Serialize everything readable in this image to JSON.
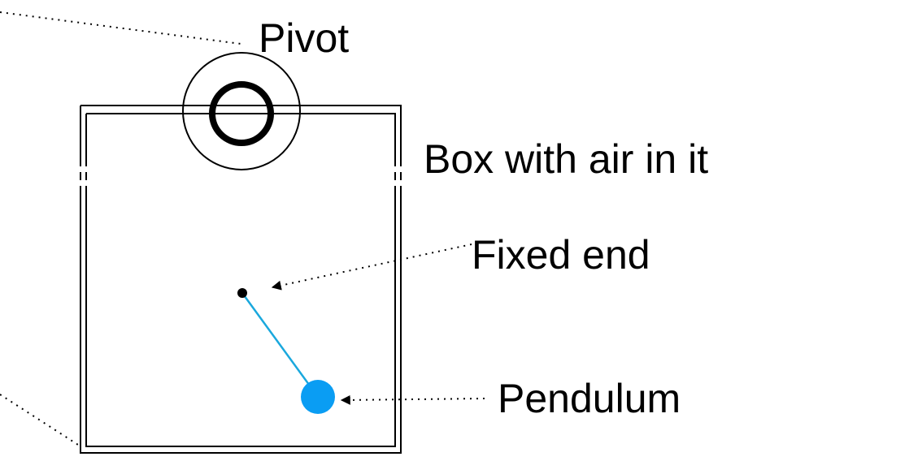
{
  "labels": {
    "pivot": "Pivot",
    "box": "Box with air in it",
    "fixed_end": "Fixed end",
    "pendulum": "Pendulum"
  },
  "colors": {
    "outline": "#000000",
    "pendulum_bob": "#0A9DF3",
    "pendulum_rod": "#1AA8DD",
    "background": "#FFFFFF"
  }
}
